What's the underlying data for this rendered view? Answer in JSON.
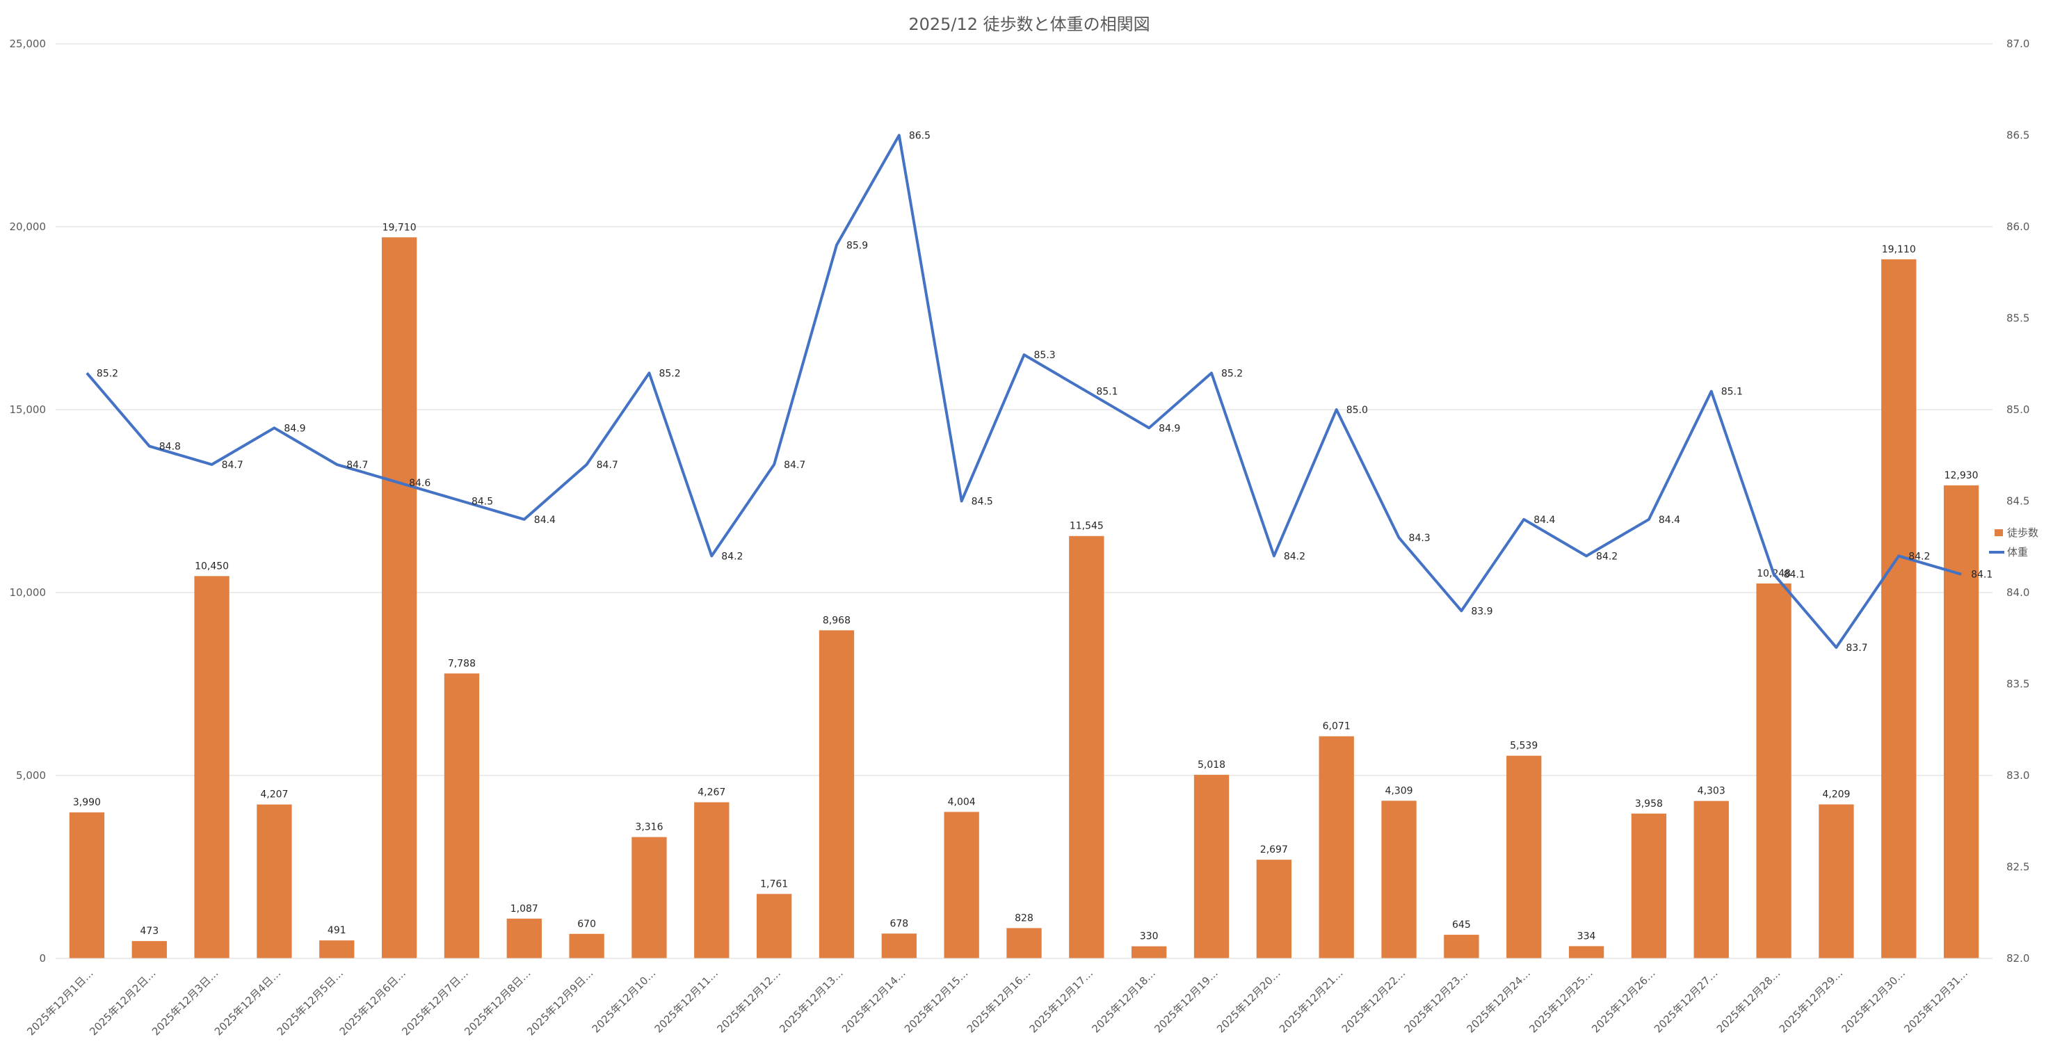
{
  "chart_data": {
    "type": "bar+line",
    "title": "2025/12 徒歩数と体重の相関図",
    "categories": [
      "2025年12月1日…",
      "2025年12月2日…",
      "2025年12月3日…",
      "2025年12月4日…",
      "2025年12月5日…",
      "2025年12月6日…",
      "2025年12月7日…",
      "2025年12月8日…",
      "2025年12月9日…",
      "2025年12月10…",
      "2025年12月11…",
      "2025年12月12…",
      "2025年12月13…",
      "2025年12月14…",
      "2025年12月15…",
      "2025年12月16…",
      "2025年12月17…",
      "2025年12月18…",
      "2025年12月19…",
      "2025年12月20…",
      "2025年12月21…",
      "2025年12月22…",
      "2025年12月23…",
      "2025年12月24…",
      "2025年12月25…",
      "2025年12月26…",
      "2025年12月27…",
      "2025年12月28…",
      "2025年12月29…",
      "2025年12月30…",
      "2025年12月31…"
    ],
    "series": [
      {
        "name": "徒歩数",
        "type": "bar",
        "axis": "left",
        "color": "#E07F40",
        "values": [
          3990,
          473,
          10450,
          4207,
          491,
          19710,
          7788,
          1087,
          670,
          3316,
          4267,
          1761,
          8968,
          678,
          4004,
          828,
          11545,
          330,
          5018,
          2697,
          6071,
          4309,
          645,
          5539,
          334,
          3958,
          4303,
          10248,
          4209,
          19110,
          12930
        ],
        "labels": [
          "3,990",
          "473",
          "10,450",
          "4,207",
          "491",
          "19,710",
          "7,788",
          "1,087",
          "670",
          "3,316",
          "4,267",
          "1,761",
          "8,968",
          "678",
          "4,004",
          "828",
          "11,545",
          "330",
          "5,018",
          "2,697",
          "6,071",
          "4,309",
          "645",
          "5,539",
          "334",
          "3,958",
          "4,303",
          "10,248",
          "4,209",
          "19,110",
          "12,930"
        ]
      },
      {
        "name": "体重",
        "type": "line",
        "axis": "right",
        "color": "#4472C4",
        "values": [
          85.2,
          84.8,
          84.7,
          84.9,
          84.7,
          84.6,
          84.5,
          84.4,
          84.7,
          85.2,
          84.2,
          84.7,
          85.9,
          86.5,
          84.5,
          85.3,
          85.1,
          84.9,
          85.2,
          84.2,
          85.0,
          84.3,
          83.9,
          84.4,
          84.2,
          84.4,
          85.1,
          84.1,
          83.7,
          84.2,
          84.1
        ],
        "labels": [
          "85.2",
          "84.8",
          "84.7",
          "84.9",
          "84.7",
          "84.6",
          "84.5",
          "84.4",
          "84.7",
          "85.2",
          "84.2",
          "84.7",
          "85.9",
          "86.5",
          "84.5",
          "85.3",
          "85.1",
          "84.9",
          "85.2",
          "84.2",
          "85.0",
          "84.3",
          "83.9",
          "84.4",
          "84.2",
          "84.4",
          "85.1",
          "84.1",
          "83.7",
          "84.2",
          "84.1"
        ]
      }
    ],
    "y_left": {
      "ylim": [
        0,
        25000
      ],
      "ticks": [
        "0",
        "5,000",
        "10,000",
        "15,000",
        "20,000",
        "25,000"
      ]
    },
    "y_right": {
      "ylim": [
        82.0,
        87.0
      ],
      "ticks": [
        "82.0",
        "82.5",
        "83.0",
        "83.5",
        "84.0",
        "84.5",
        "85.0",
        "85.5",
        "86.0",
        "86.5",
        "87.0"
      ]
    },
    "grid": true,
    "legend": "right",
    "gridline_color": "#D9D9D9"
  }
}
